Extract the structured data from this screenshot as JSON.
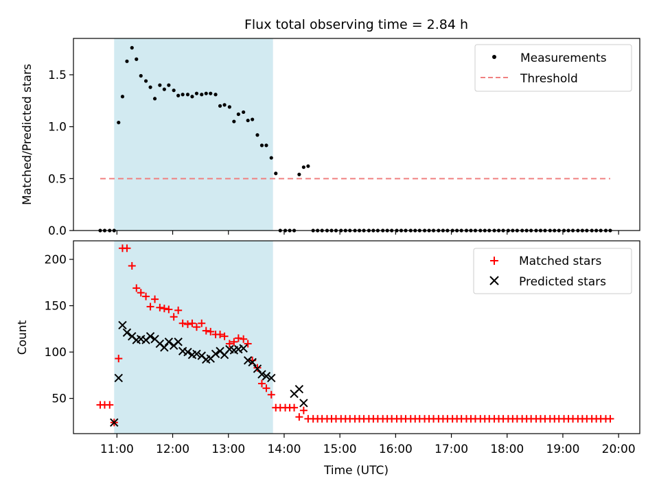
{
  "figure": {
    "title": "Flux total observing time = 2.84 h",
    "xlabel": "Time (UTC)",
    "x_tick_labels": [
      "11:00",
      "12:00",
      "13:00",
      "14:00",
      "15:00",
      "16:00",
      "17:00",
      "18:00",
      "19:00",
      "20:00"
    ],
    "x_ticks_hours": [
      11,
      12,
      13,
      14,
      15,
      16,
      17,
      18,
      19,
      20
    ],
    "xlim_hours": [
      10.22,
      20.38
    ],
    "shaded_span_hours": [
      10.95,
      13.8
    ],
    "shade_color": "#add8e6"
  },
  "chart_data": [
    {
      "type": "scatter",
      "ylabel": "Matched/Predicted stars",
      "ylim": [
        0,
        1.85
      ],
      "y_ticks": [
        0.0,
        0.5,
        1.0,
        1.5
      ],
      "y_tick_labels": [
        "0.0",
        "0.5",
        "1.0",
        "1.5"
      ],
      "legend": {
        "placement": "top-right",
        "entries": [
          "Measurements",
          "Threshold"
        ]
      },
      "series": [
        {
          "name": "Measurements",
          "marker": "dot",
          "color": "#000000",
          "x": [
            10.7,
            10.78,
            10.87,
            10.95,
            11.03,
            11.1,
            11.18,
            11.27,
            11.35,
            11.43,
            11.52,
            11.6,
            11.68,
            11.77,
            11.85,
            11.93,
            12.02,
            12.1,
            12.18,
            12.27,
            12.35,
            12.43,
            12.52,
            12.6,
            12.68,
            12.77,
            12.85,
            12.93,
            13.02,
            13.1,
            13.18,
            13.27,
            13.35,
            13.43,
            13.52,
            13.6,
            13.68,
            13.77,
            13.85,
            13.93,
            14.02,
            14.1,
            14.18,
            14.27,
            14.35,
            14.43,
            14.52,
            14.6,
            14.68,
            14.77,
            14.85,
            14.93,
            15.02,
            15.1,
            15.18,
            15.27,
            15.35,
            15.43,
            15.52,
            15.6,
            15.68,
            15.77,
            15.85,
            15.93,
            16.02,
            16.1,
            16.18,
            16.27,
            16.35,
            16.43,
            16.52,
            16.6,
            16.68,
            16.77,
            16.85,
            16.93,
            17.02,
            17.1,
            17.18,
            17.27,
            17.35,
            17.43,
            17.52,
            17.6,
            17.68,
            17.77,
            17.85,
            17.93,
            18.02,
            18.1,
            18.18,
            18.27,
            18.35,
            18.43,
            18.52,
            18.6,
            18.68,
            18.77,
            18.85,
            18.93,
            19.02,
            19.1,
            19.18,
            19.27,
            19.35,
            19.43,
            19.52,
            19.6,
            19.68,
            19.77,
            19.85
          ],
          "y": [
            0,
            0,
            0,
            0,
            1.04,
            1.29,
            1.63,
            1.76,
            1.65,
            1.49,
            1.44,
            1.38,
            1.27,
            1.4,
            1.36,
            1.4,
            1.35,
            1.3,
            1.31,
            1.31,
            1.29,
            1.32,
            1.31,
            1.32,
            1.32,
            1.31,
            1.2,
            1.21,
            1.19,
            1.05,
            1.12,
            1.14,
            1.06,
            1.07,
            0.92,
            0.82,
            0.82,
            0.7,
            0.55,
            0,
            0,
            0,
            0,
            0.54,
            0.61,
            0.62,
            0,
            0,
            0,
            0,
            0,
            0,
            0,
            0,
            0,
            0,
            0,
            0,
            0,
            0,
            0,
            0,
            0,
            0,
            0,
            0,
            0,
            0,
            0,
            0,
            0,
            0,
            0,
            0,
            0,
            0,
            0,
            0,
            0,
            0,
            0,
            0,
            0,
            0,
            0,
            0,
            0,
            0,
            0,
            0,
            0,
            0,
            0,
            0,
            0,
            0,
            0,
            0,
            0,
            0,
            0,
            0,
            0,
            0,
            0,
            0,
            0,
            0,
            0,
            0,
            0
          ]
        },
        {
          "name": "Threshold",
          "marker": "dashed-line",
          "color": "#f08080",
          "x": [
            10.7,
            19.85
          ],
          "y": [
            0.5,
            0.5
          ]
        }
      ]
    },
    {
      "type": "scatter",
      "xlabel": "Time (UTC)",
      "ylabel": "Count",
      "ylim": [
        12,
        220
      ],
      "y_ticks": [
        50,
        100,
        150,
        200
      ],
      "y_tick_labels": [
        "50",
        "100",
        "150",
        "200"
      ],
      "legend": {
        "placement": "top-right",
        "entries": [
          "Matched stars",
          "Predicted stars"
        ]
      },
      "series": [
        {
          "name": "Matched stars",
          "marker": "plus",
          "color": "#ff0000",
          "x": [
            10.7,
            10.78,
            10.87,
            10.95,
            11.03,
            11.1,
            11.18,
            11.27,
            11.35,
            11.43,
            11.52,
            11.6,
            11.68,
            11.77,
            11.85,
            11.93,
            12.02,
            12.1,
            12.18,
            12.27,
            12.35,
            12.43,
            12.52,
            12.6,
            12.68,
            12.77,
            12.85,
            12.93,
            13.02,
            13.1,
            13.18,
            13.27,
            13.35,
            13.43,
            13.52,
            13.6,
            13.68,
            13.77,
            13.85,
            13.93,
            14.02,
            14.1,
            14.18,
            14.27,
            14.35,
            14.43,
            14.52,
            14.6,
            14.68,
            14.77,
            14.85,
            14.93,
            15.02,
            15.1,
            15.18,
            15.27,
            15.35,
            15.43,
            15.52,
            15.6,
            15.68,
            15.77,
            15.85,
            15.93,
            16.02,
            16.1,
            16.18,
            16.27,
            16.35,
            16.43,
            16.52,
            16.6,
            16.68,
            16.77,
            16.85,
            16.93,
            17.02,
            17.1,
            17.18,
            17.27,
            17.35,
            17.43,
            17.52,
            17.6,
            17.68,
            17.77,
            17.85,
            17.93,
            18.02,
            18.1,
            18.18,
            18.27,
            18.35,
            18.43,
            18.52,
            18.6,
            18.68,
            18.77,
            18.85,
            18.93,
            19.02,
            19.1,
            19.18,
            19.27,
            19.35,
            19.43,
            19.52,
            19.6,
            19.68,
            19.77,
            19.85
          ],
          "y": [
            43,
            43,
            43,
            24,
            93,
            212,
            212,
            193,
            169,
            164,
            160,
            149,
            157,
            148,
            147,
            146,
            138,
            145,
            131,
            130,
            131,
            127,
            131,
            123,
            122,
            119,
            119,
            117,
            109,
            111,
            115,
            114,
            109,
            91,
            83,
            66,
            61,
            54,
            40,
            40,
            40,
            40,
            40,
            30,
            37,
            28,
            28,
            28,
            28,
            28,
            28,
            28,
            28,
            28,
            28,
            28,
            28,
            28,
            28,
            28,
            28,
            28,
            28,
            28,
            28,
            28,
            28,
            28,
            28,
            28,
            28,
            28,
            28,
            28,
            28,
            28,
            28,
            28,
            28,
            28,
            28,
            28,
            28,
            28,
            28,
            28,
            28,
            28,
            28,
            28,
            28,
            28,
            28,
            28,
            28,
            28,
            28,
            28,
            28,
            28,
            28,
            28,
            28,
            28,
            28,
            28,
            28,
            28,
            28,
            28,
            28
          ]
        },
        {
          "name": "Predicted stars",
          "marker": "x",
          "color": "#000000",
          "x": [
            10.95,
            11.03,
            11.1,
            11.18,
            11.27,
            11.35,
            11.43,
            11.52,
            11.6,
            11.68,
            11.77,
            11.85,
            11.93,
            12.02,
            12.1,
            12.18,
            12.27,
            12.35,
            12.43,
            12.52,
            12.6,
            12.68,
            12.77,
            12.85,
            12.93,
            13.02,
            13.1,
            13.18,
            13.27,
            13.35,
            13.43,
            13.52,
            13.6,
            13.68,
            13.77,
            14.18,
            14.27,
            14.35
          ],
          "y": [
            24,
            72,
            129,
            121,
            117,
            113,
            114,
            113,
            117,
            114,
            109,
            105,
            111,
            107,
            111,
            101,
            100,
            97,
            98,
            96,
            92,
            93,
            98,
            101,
            97,
            103,
            102,
            103,
            104,
            91,
            89,
            82,
            76,
            74,
            72,
            55,
            60,
            45
          ]
        }
      ]
    }
  ]
}
